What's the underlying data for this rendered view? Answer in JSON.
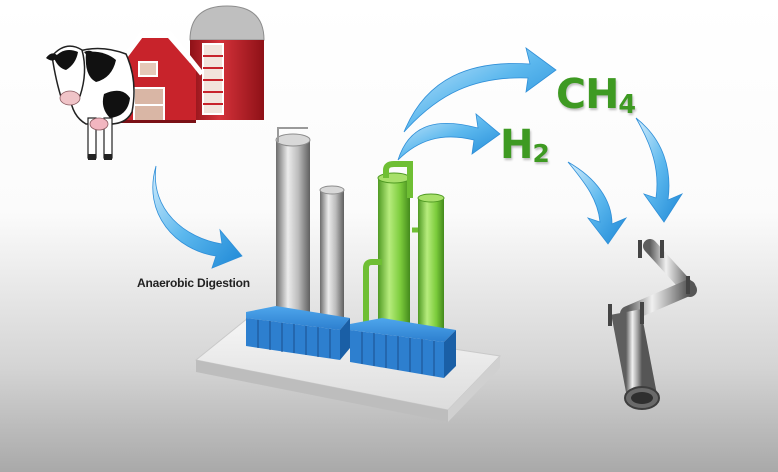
{
  "labels": {
    "process": "Anaerobic Digestion"
  },
  "products": {
    "methane": {
      "main": "CH",
      "sub": "4"
    },
    "hydrogen": {
      "main": "H",
      "sub": "2"
    }
  },
  "colors": {
    "arrow": "#3aa4e6",
    "formula": "#3e9a22",
    "tank_blue": "#2d7fcf",
    "tower_green": "#7ccc3c",
    "barn_red": "#c8232b"
  },
  "icons": [
    "cow-icon",
    "barn-icon",
    "silo-icon",
    "arrow-icon",
    "digester-plant-icon",
    "pipeline-icon"
  ]
}
